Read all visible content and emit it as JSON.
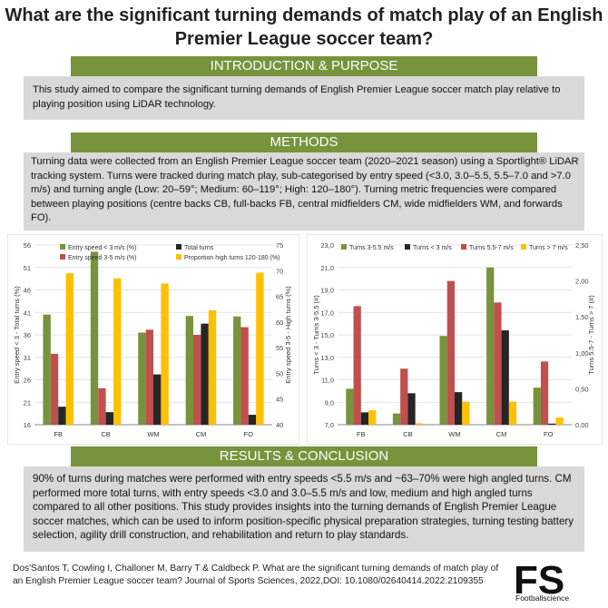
{
  "title": "What are the significant turning demands of match play of an English Premier League soccer team?",
  "sections": {
    "intro": {
      "heading": "INTRODUCTION & PURPOSE",
      "text": "This study aimed to compare the significant turning demands of English Premier League soccer match play relative to playing position using LiDAR technology."
    },
    "methods": {
      "heading": "METHODS",
      "text": "Turning data were collected from an English Premier League soccer team (2020–2021 season) using a Sportlight® LiDAR tracking system. Turns were tracked during match play, sub-categorised by entry speed (<3.0, 3.0–5.5, 5.5–7.0 and >7.0 m/s) and turning angle (Low: 20–59°; Medium: 60–119°; High: 120–180°). Turning metric frequencies were compared between playing positions (centre backs CB, full-backs FB, central midfielders CM, wide midfielders WM, and forwards FO)."
    },
    "results": {
      "heading": "RESULTS & CONCLUSION",
      "text": "90% of turns during matches were performed with entry speeds <5.5 m/s and ~63–70% were high angled turns. CM performed more total turns, with entry speeds <3.0 and 3.0–5.5 m/s and low, medium and high angled turns compared to all other positions. This study provides insights into the turning demands of English Premier League soccer matches, which can be used to inform position-specific physical preparation strategies, turning testing battery selection, agility drill construction, and rehabilitation and return to play standards."
    }
  },
  "citation": "Dos'Santos T, Cowling I, Challoner M, Barry T & Caldbeck P. What are the significant turning demands of match play of an English Premier League soccer team? Journal of Sports Sciences, 2022,DOI: 10.1080/02640414.2022.2109355",
  "logo": {
    "letters": "FS",
    "name": "Footballscience"
  },
  "colors": {
    "green": "#77933c",
    "red": "#c0504d",
    "dark": "#262626",
    "yellow": "#ffc000",
    "panel": "#d9d9d9"
  },
  "chart_data": [
    {
      "type": "bar",
      "categories": [
        "FB",
        "CB",
        "WM",
        "CM",
        "FO"
      ],
      "series": [
        {
          "name": "Entry speed < 3 m/s (%)",
          "axis": "left",
          "color": "#77933c",
          "values": [
            40.5,
            54.5,
            36.5,
            40.2,
            40.1
          ]
        },
        {
          "name": "Entry speed 3-5 m/s (%)",
          "axis": "right",
          "color": "#c0504d",
          "values": [
            53.8,
            47.1,
            58.5,
            57.5,
            59.0
          ]
        },
        {
          "name": "Total turns",
          "axis": "left",
          "color": "#262626",
          "values": [
            20.0,
            18.8,
            27.2,
            38.5,
            18.2
          ]
        },
        {
          "name": "Proportion high turns 120-180 (%)",
          "axis": "right",
          "color": "#ffc000",
          "values": [
            69.5,
            68.5,
            67.5,
            62.3,
            69.6
          ]
        }
      ],
      "left_axis": {
        "label": "Entry speed < 3 - Total turns (%)",
        "min": 16,
        "max": 56,
        "ticks": [
          "16",
          "21",
          "26",
          "31",
          "36",
          "41",
          "46",
          "51",
          "56"
        ]
      },
      "right_axis": {
        "label": "Entry speed 3-5 - High turns (%)",
        "min": 40,
        "max": 75,
        "ticks": [
          "40",
          "45",
          "50",
          "55",
          "60",
          "65",
          "70",
          "75"
        ]
      },
      "legend": "top"
    },
    {
      "type": "bar",
      "categories": [
        "FB",
        "CB",
        "WM",
        "CM",
        "FO"
      ],
      "series": [
        {
          "name": "Turns 3-5.5 m/s",
          "axis": "left",
          "color": "#77933c",
          "values": [
            10.2,
            8.0,
            14.9,
            21.0,
            10.3
          ]
        },
        {
          "name": "Turns 5.5-7 m/s",
          "axis": "right",
          "color": "#c0504d",
          "values": [
            1.65,
            0.78,
            2.0,
            1.7,
            0.88
          ]
        },
        {
          "name": "Turns < 3 m/s",
          "axis": "left",
          "color": "#262626",
          "values": [
            8.1,
            9.8,
            9.9,
            15.4,
            7.1
          ]
        },
        {
          "name": "Turns > 7 m/s",
          "axis": "right",
          "color": "#ffc000",
          "values": [
            0.2,
            0.02,
            0.32,
            0.32,
            0.1
          ]
        }
      ],
      "left_axis": {
        "label": "Turns < 3 - Turns 3-5.5 (#)",
        "min": 7.0,
        "max": 23.0,
        "ticks": [
          "7,0",
          "9,0",
          "11,0",
          "13,0",
          "15,0",
          "17,0",
          "19,0",
          "21,0",
          "23,0"
        ]
      },
      "right_axis": {
        "label": "Turns 5.5-7 - Turns > 7 (#)",
        "min": 0,
        "max": 2.5,
        "ticks": [
          "0,00",
          "0,50",
          "1,00",
          "1,50",
          "2,00",
          "2,50"
        ]
      },
      "legend": "top"
    }
  ]
}
